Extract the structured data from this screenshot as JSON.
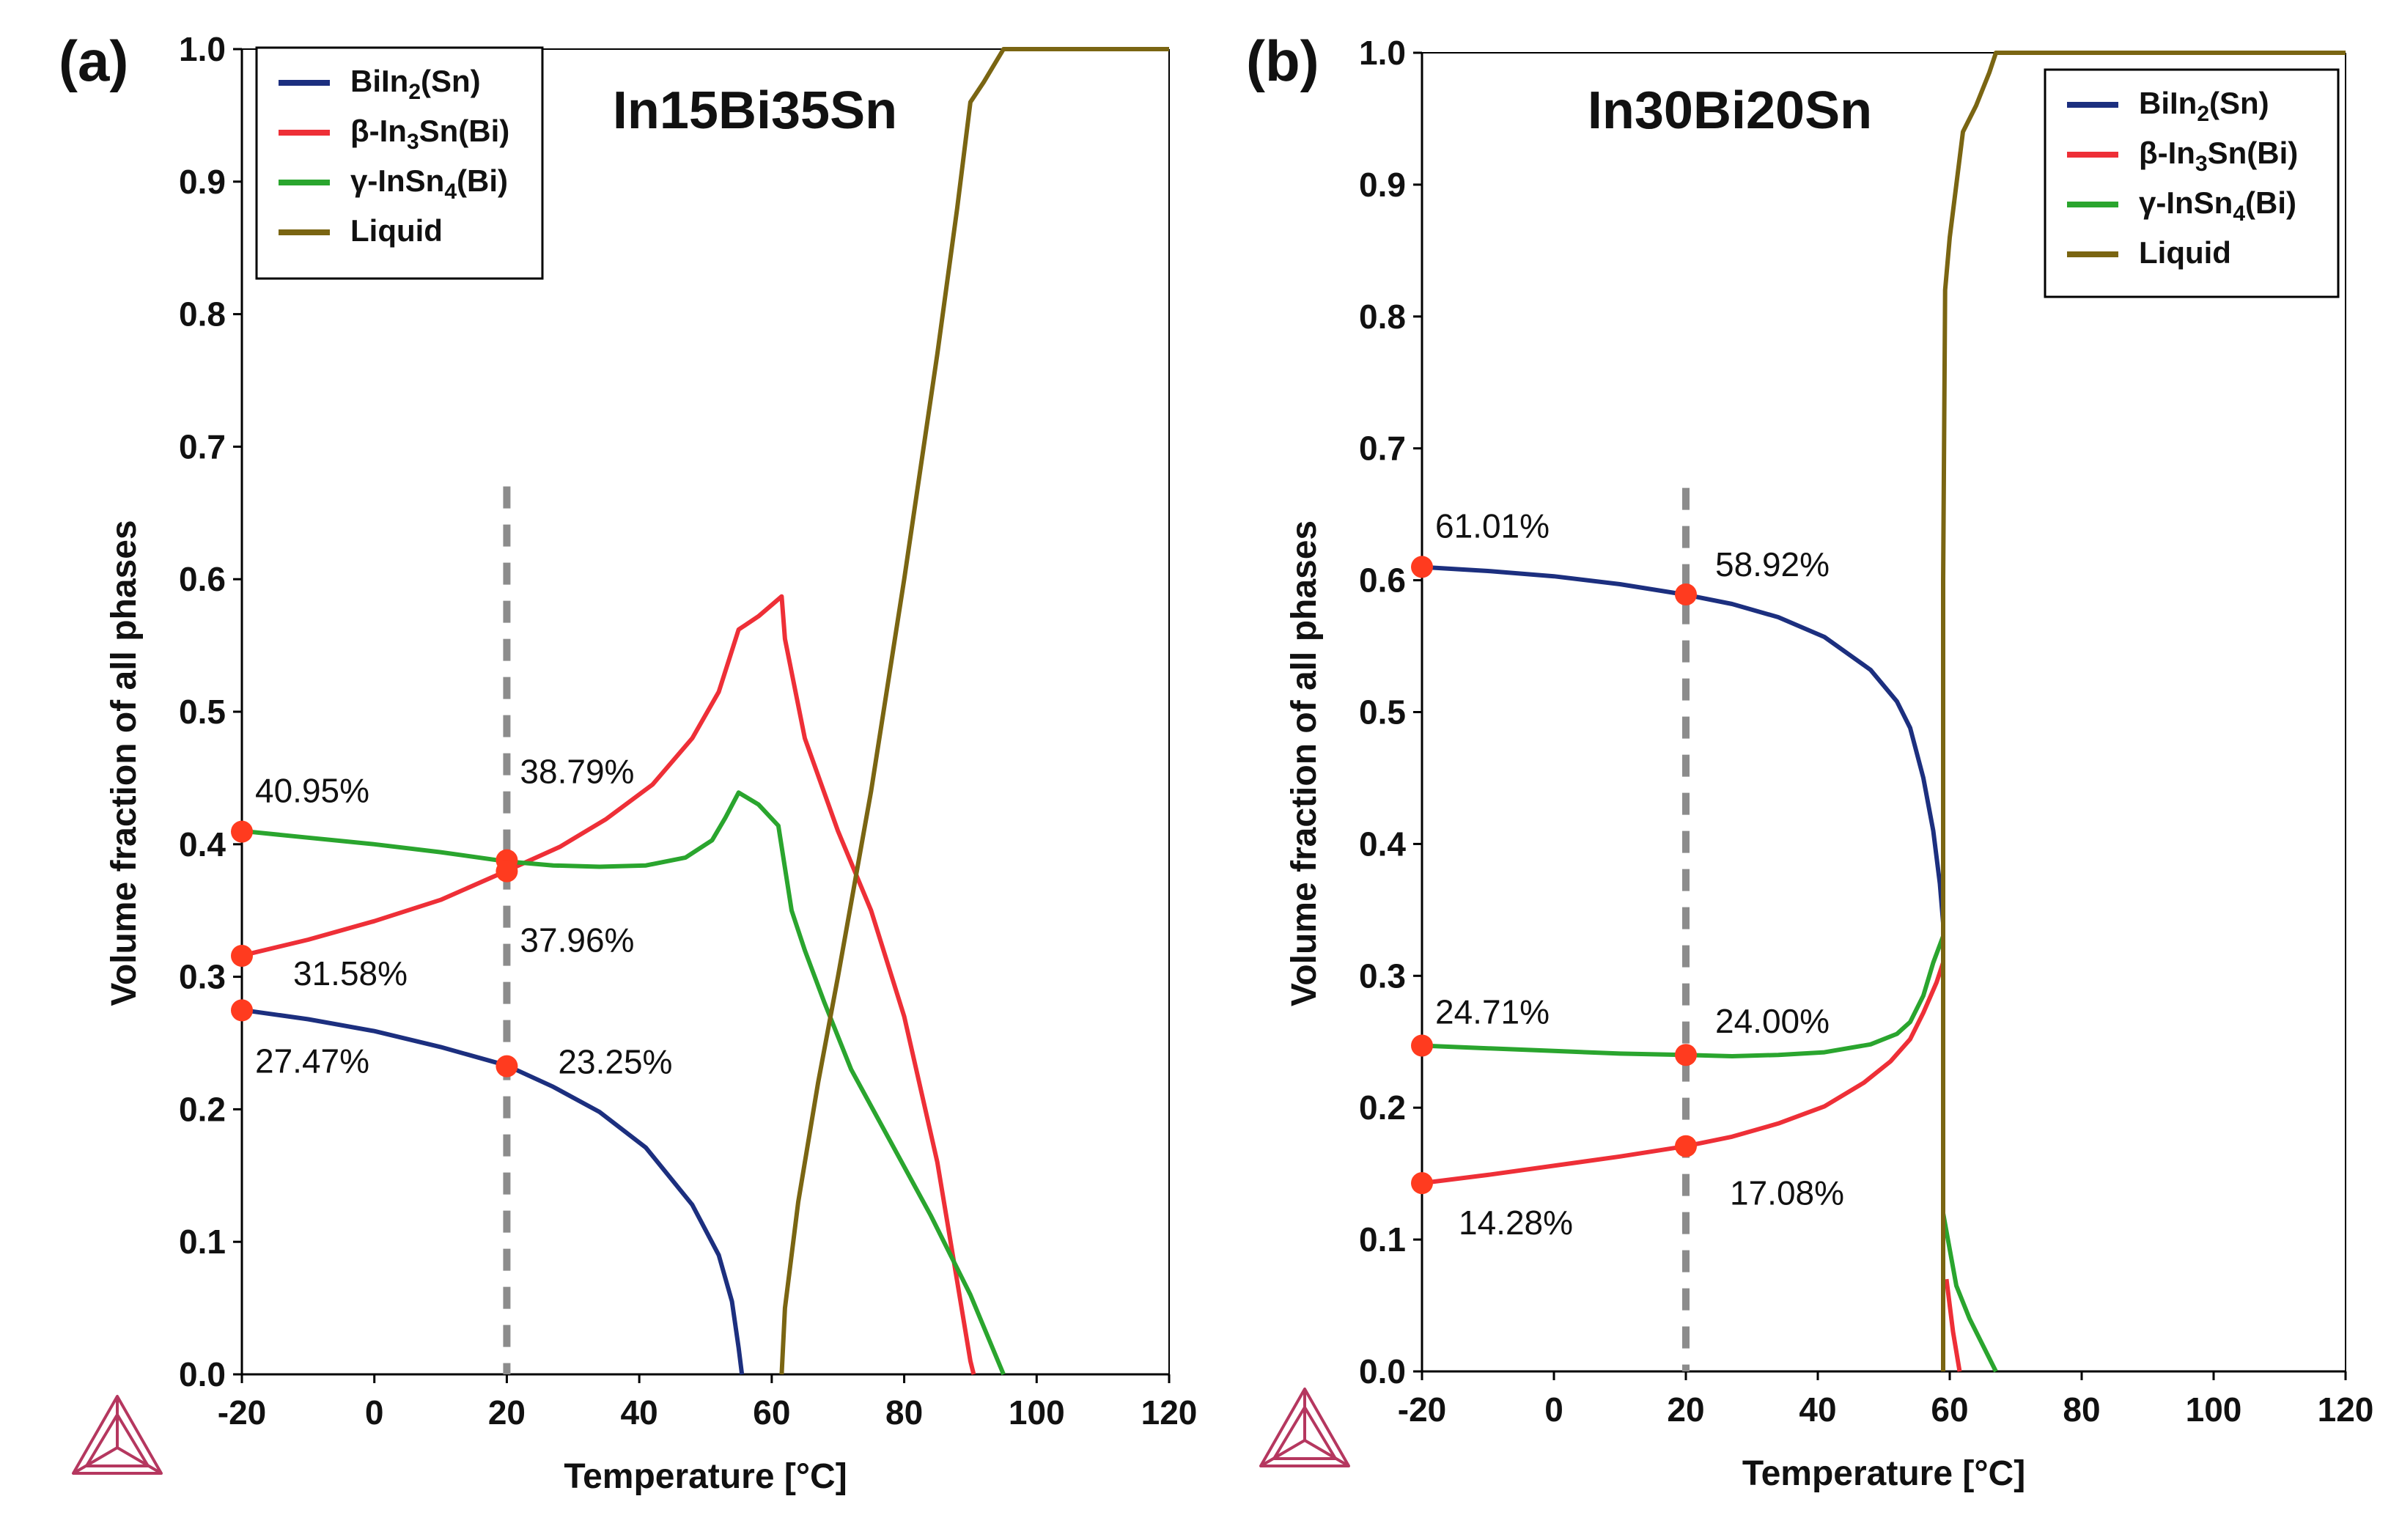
{
  "colors": {
    "biin2": "#1c2f7f",
    "beta": "#ee2f37",
    "gamma": "#2aa52e",
    "liquid": "#7a6512",
    "marker": "#ff3b1f",
    "guide": "#8c8c8c",
    "logo": "#b5375f"
  },
  "chart_data": [
    {
      "type": "line",
      "panel_label": "(a)",
      "title": "In15Bi35Sn",
      "xlabel": "Temperature [°C]",
      "ylabel": "Volume fraction of all phases",
      "xlim": [
        -20,
        120
      ],
      "ylim": [
        0,
        1
      ],
      "xticks": [
        -20,
        0,
        20,
        40,
        60,
        80,
        100,
        120
      ],
      "xtick_labels": [
        "-20",
        "0",
        "20",
        "40",
        "60",
        "80",
        "100",
        "120"
      ],
      "yticks": [
        0,
        0.1,
        0.2,
        0.3,
        0.4,
        0.5,
        0.6,
        0.7,
        0.8,
        0.9,
        1.0
      ],
      "ytick_labels": [
        "0.0",
        "0.1",
        "0.2",
        "0.3",
        "0.4",
        "0.5",
        "0.6",
        "0.7",
        "0.8",
        "0.9",
        "1.0"
      ],
      "legend": "top-left",
      "guide_x": 20,
      "guide_ymax": 0.67,
      "series": [
        {
          "id": "biin2",
          "legend_label": "BiIn",
          "legend_sub": "2",
          "legend_suffix": "(Sn)",
          "x": [
            -20,
            -10,
            0,
            10,
            20,
            27,
            34,
            41,
            48,
            52,
            54,
            55,
            55.5
          ],
          "y": [
            0.275,
            0.268,
            0.259,
            0.247,
            0.233,
            0.217,
            0.198,
            0.171,
            0.128,
            0.09,
            0.055,
            0.02,
            0.0
          ]
        },
        {
          "id": "beta",
          "legend_label": "β-In",
          "legend_sub": "3",
          "legend_suffix": "Sn(Bi)",
          "x": [
            -20,
            -10,
            0,
            10,
            20,
            28,
            35,
            42,
            48,
            52,
            55,
            58,
            61.5,
            62,
            65,
            70,
            75,
            80,
            85,
            88,
            90,
            90.5
          ],
          "y": [
            0.316,
            0.328,
            0.342,
            0.358,
            0.38,
            0.398,
            0.419,
            0.445,
            0.48,
            0.515,
            0.562,
            0.572,
            0.587,
            0.555,
            0.48,
            0.41,
            0.35,
            0.27,
            0.16,
            0.07,
            0.01,
            0.0
          ]
        },
        {
          "id": "gamma",
          "legend_label": "γ-InSn",
          "legend_sub": "4",
          "legend_suffix": "(Bi)",
          "x": [
            -20,
            -10,
            0,
            10,
            20,
            27,
            34,
            41,
            47,
            51,
            53,
            55,
            58,
            61,
            63,
            65,
            68,
            72,
            78,
            84,
            90,
            95
          ],
          "y": [
            0.41,
            0.405,
            0.4,
            0.394,
            0.387,
            0.384,
            0.383,
            0.384,
            0.39,
            0.403,
            0.42,
            0.439,
            0.43,
            0.414,
            0.35,
            0.32,
            0.28,
            0.23,
            0.175,
            0.12,
            0.06,
            0.0
          ]
        },
        {
          "id": "liquid",
          "legend_label": "Liquid",
          "legend_sub": "",
          "legend_suffix": "",
          "x": [
            61.5,
            62,
            64,
            67,
            70,
            75,
            80,
            85,
            88,
            90,
            92,
            95,
            120
          ],
          "y": [
            0.0,
            0.05,
            0.13,
            0.22,
            0.3,
            0.44,
            0.6,
            0.77,
            0.88,
            0.96,
            0.975,
            1.0,
            1.0
          ]
        }
      ],
      "markers": [
        {
          "series": "gamma",
          "x": -20,
          "y": 0.4095,
          "label": "40.95%"
        },
        {
          "series": "beta",
          "x": -20,
          "y": 0.3158,
          "label": "31.58%"
        },
        {
          "series": "biin2",
          "x": -20,
          "y": 0.2747,
          "label": "27.47%"
        },
        {
          "series": "gamma",
          "x": 20,
          "y": 0.3879,
          "label": "38.79%"
        },
        {
          "series": "beta",
          "x": 20,
          "y": 0.3796,
          "label": "37.96%"
        },
        {
          "series": "biin2",
          "x": 20,
          "y": 0.2325,
          "label": "23.25%"
        }
      ]
    },
    {
      "type": "line",
      "panel_label": "(b)",
      "title": "In30Bi20Sn",
      "xlabel": "Temperature [°C]",
      "ylabel": "Volume fraction of all phases",
      "xlim": [
        -20,
        120
      ],
      "ylim": [
        0,
        1
      ],
      "xticks": [
        -20,
        0,
        20,
        40,
        60,
        80,
        100,
        120
      ],
      "xtick_labels": [
        "-20",
        "0",
        "20",
        "40",
        "60",
        "80",
        "100",
        "120"
      ],
      "yticks": [
        0,
        0.1,
        0.2,
        0.3,
        0.4,
        0.5,
        0.6,
        0.7,
        0.8,
        0.9,
        1.0
      ],
      "ytick_labels": [
        "0.0",
        "0.1",
        "0.2",
        "0.3",
        "0.4",
        "0.5",
        "0.6",
        "0.7",
        "0.8",
        "0.9",
        "1.0"
      ],
      "legend": "top-right",
      "guide_x": 20,
      "guide_ymax": 0.67,
      "series": [
        {
          "id": "biin2",
          "legend_label": "BiIn",
          "legend_sub": "2",
          "legend_suffix": "(Sn)",
          "x": [
            -20,
            -10,
            0,
            10,
            20,
            27,
            34,
            41,
            48,
            52,
            54,
            56,
            57.5,
            58.5,
            59,
            59,
            59
          ],
          "y": [
            0.61,
            0.607,
            0.603,
            0.597,
            0.589,
            0.582,
            0.572,
            0.557,
            0.532,
            0.508,
            0.488,
            0.45,
            0.41,
            0.37,
            0.34,
            0.1,
            0.0
          ]
        },
        {
          "id": "beta",
          "legend_label": "β-In",
          "legend_sub": "3",
          "legend_suffix": "Sn(Bi)",
          "x": [
            -20,
            -10,
            0,
            10,
            20,
            27,
            34,
            41,
            47,
            51,
            54,
            56,
            58,
            59
          ],
          "y": [
            0.1428,
            0.149,
            0.156,
            0.163,
            0.1708,
            0.178,
            0.188,
            0.201,
            0.219,
            0.235,
            0.252,
            0.272,
            0.295,
            0.31
          ],
          "tail_x": [
            59.5,
            60.5,
            61.5
          ],
          "tail_y": [
            0.07,
            0.03,
            0.0
          ]
        },
        {
          "id": "gamma",
          "legend_label": "γ-InSn",
          "legend_sub": "4",
          "legend_suffix": "(Bi)",
          "x": [
            -20,
            -10,
            0,
            10,
            20,
            27,
            34,
            41,
            48,
            52,
            54,
            56,
            57.5,
            59
          ],
          "y": [
            0.2471,
            0.245,
            0.243,
            0.241,
            0.24,
            0.239,
            0.24,
            0.242,
            0.248,
            0.256,
            0.265,
            0.285,
            0.31,
            0.33
          ],
          "tail_x": [
            59,
            61,
            63,
            65,
            67
          ],
          "tail_y": [
            0.12,
            0.065,
            0.04,
            0.02,
            0.0
          ]
        },
        {
          "id": "liquid",
          "legend_label": "Liquid",
          "legend_sub": "",
          "legend_suffix": "",
          "x": [
            59,
            59,
            59.3,
            60,
            61,
            62,
            64,
            66,
            67,
            120
          ],
          "y": [
            0.0,
            0.6,
            0.82,
            0.86,
            0.9,
            0.94,
            0.96,
            0.985,
            1.0,
            1.0
          ]
        }
      ],
      "markers": [
        {
          "series": "biin2",
          "x": -20,
          "y": 0.6101,
          "label": "61.01%"
        },
        {
          "series": "gamma",
          "x": -20,
          "y": 0.2471,
          "label": "24.71%"
        },
        {
          "series": "beta",
          "x": -20,
          "y": 0.1428,
          "label": "14.28%"
        },
        {
          "series": "biin2",
          "x": 20,
          "y": 0.5892,
          "label": "58.92%"
        },
        {
          "series": "gamma",
          "x": 20,
          "y": 0.24,
          "label": "24.00%"
        },
        {
          "series": "beta",
          "x": 20,
          "y": 0.1708,
          "label": "17.08%"
        }
      ]
    }
  ]
}
